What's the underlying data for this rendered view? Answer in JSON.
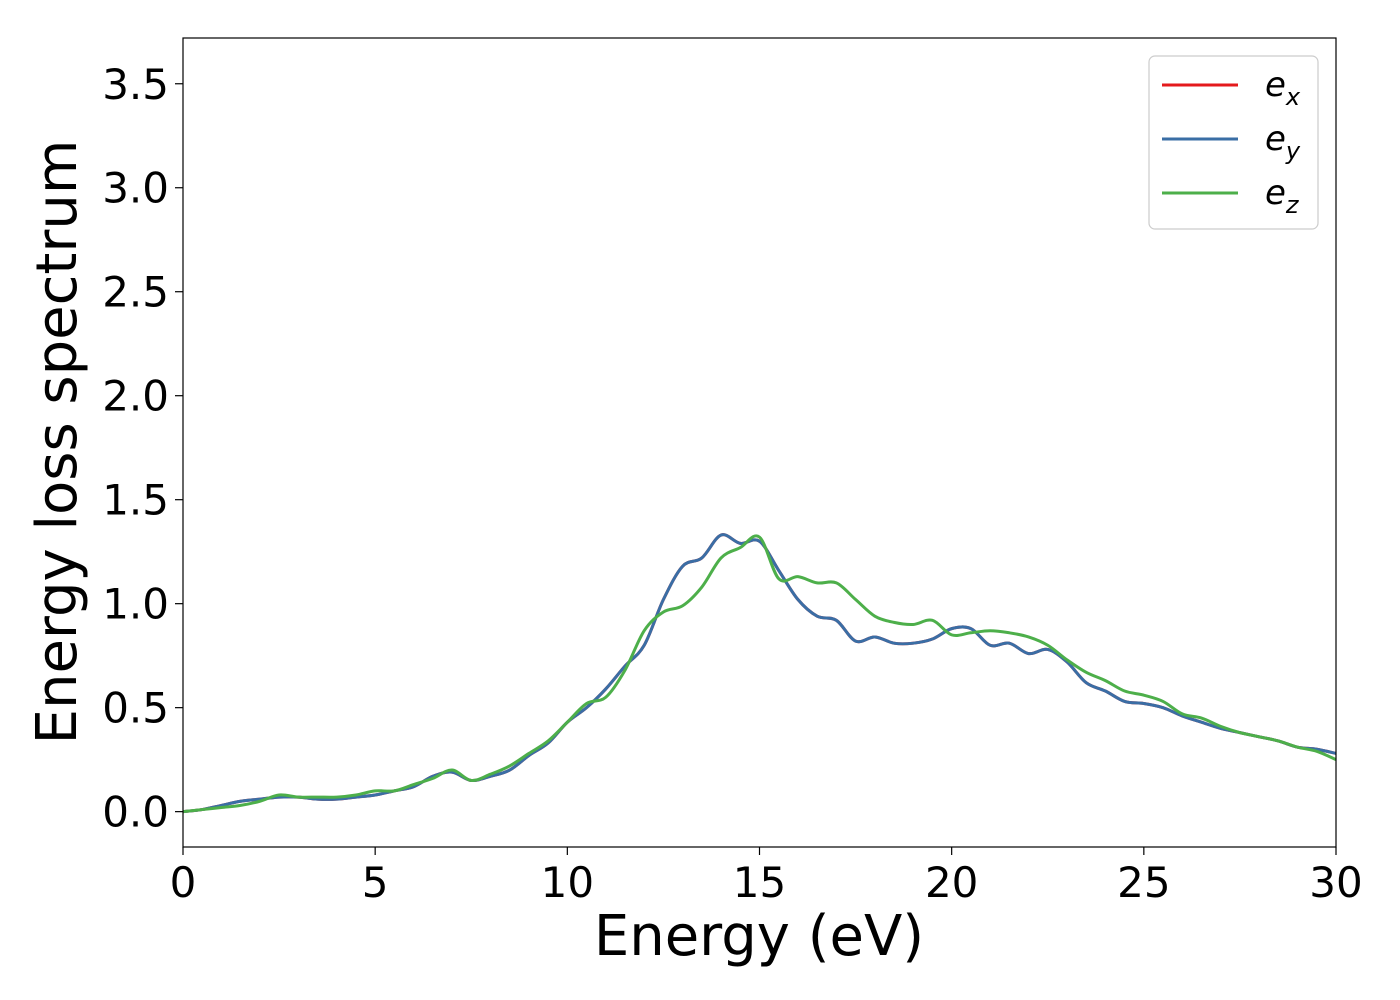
{
  "chart_data": {
    "type": "line",
    "xlabel": "Energy (eV)",
    "ylabel": "Energy loss spectrum",
    "xlim": [
      0,
      30
    ],
    "ylim": [
      -0.17,
      3.72
    ],
    "xticks": [
      "0",
      "5",
      "10",
      "15",
      "20",
      "25",
      "30"
    ],
    "yticks": [
      "0.0",
      "0.5",
      "1.0",
      "1.5",
      "2.0",
      "2.5",
      "3.0",
      "3.5"
    ],
    "grid": false,
    "legend_position": "top-right",
    "series": [
      {
        "name": "e",
        "subscript": "x",
        "color": "#e41a1c",
        "x": [
          0,
          0.5,
          1,
          1.5,
          2,
          2.5,
          3,
          3.5,
          4,
          4.5,
          5,
          5.5,
          6,
          6.5,
          7,
          7.5,
          8,
          8.5,
          9,
          9.5,
          10,
          10.5,
          11,
          11.5,
          12,
          12.5,
          13,
          13.5,
          14,
          14.5,
          15,
          15.5,
          16,
          16.5,
          17,
          17.5,
          18,
          18.5,
          19,
          19.5,
          20,
          20.5,
          21,
          21.5,
          22,
          22.5,
          23,
          23.5,
          24,
          24.5,
          25,
          25.5,
          26,
          26.5,
          27,
          27.5,
          28,
          28.5,
          29,
          29.5,
          30
        ],
        "values": [
          0.0,
          0.01,
          0.03,
          0.05,
          0.06,
          0.07,
          0.07,
          0.06,
          0.06,
          0.07,
          0.08,
          0.1,
          0.12,
          0.17,
          0.19,
          0.15,
          0.17,
          0.2,
          0.27,
          0.33,
          0.43,
          0.5,
          0.59,
          0.7,
          0.8,
          1.02,
          1.18,
          1.22,
          1.33,
          1.29,
          1.3,
          1.16,
          1.02,
          0.94,
          0.92,
          0.82,
          0.84,
          0.81,
          0.81,
          0.83,
          0.88,
          0.88,
          0.8,
          0.81,
          0.76,
          0.78,
          0.72,
          0.62,
          0.58,
          0.53,
          0.52,
          0.5,
          0.46,
          0.43,
          0.4,
          0.38,
          0.36,
          0.34,
          0.31,
          0.3,
          0.28
        ]
      },
      {
        "name": "e",
        "subscript": "y",
        "color": "#3a6ea5",
        "x": [
          0,
          0.5,
          1,
          1.5,
          2,
          2.5,
          3,
          3.5,
          4,
          4.5,
          5,
          5.5,
          6,
          6.5,
          7,
          7.5,
          8,
          8.5,
          9,
          9.5,
          10,
          10.5,
          11,
          11.5,
          12,
          12.5,
          13,
          13.5,
          14,
          14.5,
          15,
          15.5,
          16,
          16.5,
          17,
          17.5,
          18,
          18.5,
          19,
          19.5,
          20,
          20.5,
          21,
          21.5,
          22,
          22.5,
          23,
          23.5,
          24,
          24.5,
          25,
          25.5,
          26,
          26.5,
          27,
          27.5,
          28,
          28.5,
          29,
          29.5,
          30
        ],
        "values": [
          0.0,
          0.01,
          0.03,
          0.05,
          0.06,
          0.07,
          0.07,
          0.06,
          0.06,
          0.07,
          0.08,
          0.1,
          0.12,
          0.17,
          0.19,
          0.15,
          0.17,
          0.2,
          0.27,
          0.33,
          0.43,
          0.5,
          0.59,
          0.7,
          0.8,
          1.02,
          1.18,
          1.22,
          1.33,
          1.29,
          1.3,
          1.16,
          1.02,
          0.94,
          0.92,
          0.82,
          0.84,
          0.81,
          0.81,
          0.83,
          0.88,
          0.88,
          0.8,
          0.81,
          0.76,
          0.78,
          0.72,
          0.62,
          0.58,
          0.53,
          0.52,
          0.5,
          0.46,
          0.43,
          0.4,
          0.38,
          0.36,
          0.34,
          0.31,
          0.3,
          0.28
        ]
      },
      {
        "name": "e",
        "subscript": "z",
        "color": "#4daf4a",
        "x": [
          0,
          0.5,
          1,
          1.5,
          2,
          2.5,
          3,
          3.5,
          4,
          4.5,
          5,
          5.5,
          6,
          6.5,
          7,
          7.5,
          8,
          8.5,
          9,
          9.5,
          10,
          10.5,
          11,
          11.5,
          12,
          12.5,
          13,
          13.5,
          14,
          14.5,
          15,
          15.5,
          16,
          16.5,
          17,
          17.5,
          18,
          18.5,
          19,
          19.5,
          20,
          20.5,
          21,
          21.5,
          22,
          22.5,
          23,
          23.5,
          24,
          24.5,
          25,
          25.5,
          26,
          26.5,
          27,
          27.5,
          28,
          28.5,
          29,
          29.5,
          30
        ],
        "values": [
          0.0,
          0.01,
          0.02,
          0.03,
          0.05,
          0.08,
          0.07,
          0.07,
          0.07,
          0.08,
          0.1,
          0.1,
          0.13,
          0.16,
          0.2,
          0.15,
          0.18,
          0.22,
          0.28,
          0.34,
          0.43,
          0.52,
          0.55,
          0.68,
          0.87,
          0.96,
          0.99,
          1.08,
          1.22,
          1.27,
          1.32,
          1.12,
          1.13,
          1.1,
          1.1,
          1.02,
          0.94,
          0.91,
          0.9,
          0.92,
          0.85,
          0.86,
          0.87,
          0.86,
          0.84,
          0.8,
          0.73,
          0.67,
          0.63,
          0.58,
          0.56,
          0.53,
          0.47,
          0.45,
          0.41,
          0.38,
          0.36,
          0.34,
          0.31,
          0.29,
          0.25
        ]
      }
    ]
  }
}
